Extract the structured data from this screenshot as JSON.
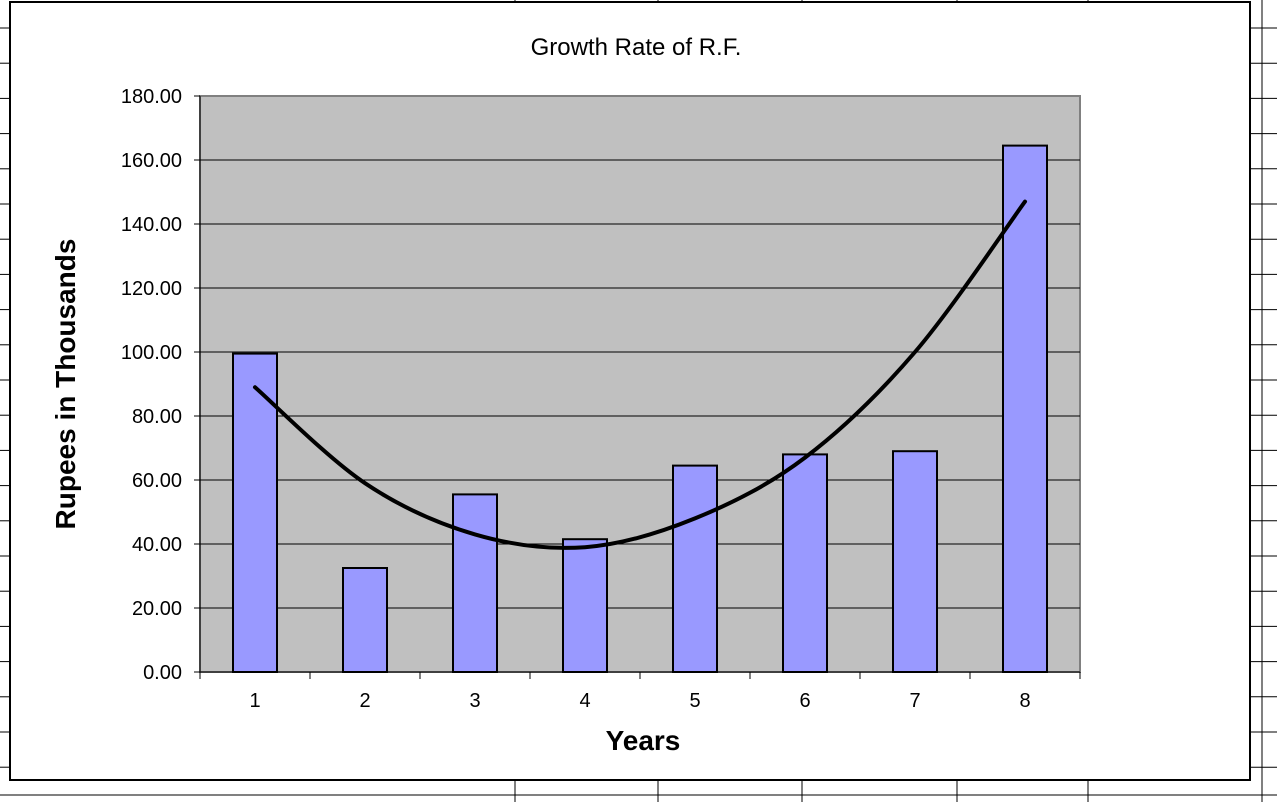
{
  "chart_data": {
    "type": "bar",
    "title": "Growth Rate of R.F.",
    "xlabel": "Years",
    "ylabel": "Rupees in Thousands",
    "categories": [
      "1",
      "2",
      "3",
      "4",
      "5",
      "6",
      "7",
      "8"
    ],
    "series": [
      {
        "values": [
          99.5,
          32.5,
          55.5,
          41.5,
          64.5,
          68.0,
          69.0,
          164.5
        ],
        "color": "#9999ff"
      }
    ],
    "trendline": {
      "type": "polynomial",
      "values": [
        89,
        59,
        43,
        39,
        48,
        67,
        100,
        147
      ],
      "color": "#000000"
    },
    "ylim": [
      0,
      180
    ],
    "yticks": [
      "0.00",
      "20.00",
      "40.00",
      "60.00",
      "80.00",
      "100.00",
      "120.00",
      "140.00",
      "160.00",
      "180.00"
    ],
    "grid": true,
    "legend": "none",
    "colors": {
      "plot_background": "#c0c0c0",
      "gridline": "#000000",
      "bar_fill": "#9999ff",
      "bar_stroke": "#000000",
      "plot_border": "#808080"
    }
  }
}
